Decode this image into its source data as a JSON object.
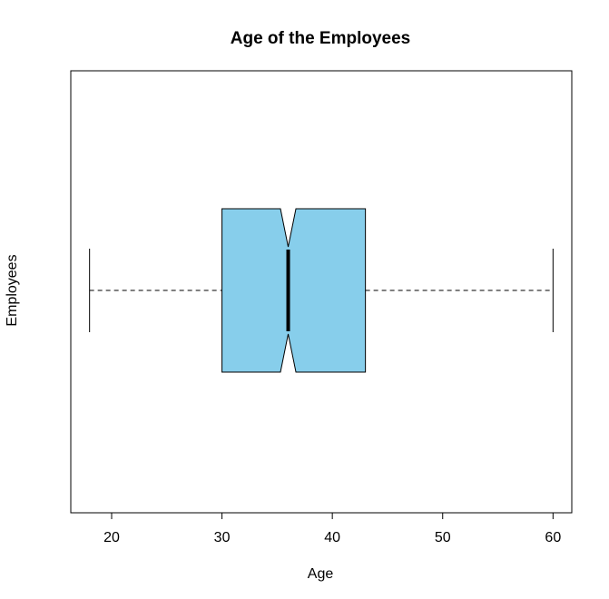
{
  "chart_data": {
    "type": "boxplot",
    "orientation": "horizontal",
    "notched": true,
    "title": "Age of the Employees",
    "xlabel": "Age",
    "ylabel": "Employees",
    "xlim": [
      16.3,
      61.7
    ],
    "ticks": [
      20,
      30,
      40,
      50,
      60
    ],
    "tick_labels": [
      "20",
      "30",
      "40",
      "50",
      "60"
    ],
    "box": {
      "min": 18,
      "q1": 30,
      "median": 36,
      "q3": 43,
      "max": 60,
      "notch_low": 35.3,
      "notch_high": 36.7
    },
    "colors": {
      "box_fill": "#87CEEB",
      "stroke": "#000000",
      "background": "#ffffff"
    },
    "grid": false
  }
}
